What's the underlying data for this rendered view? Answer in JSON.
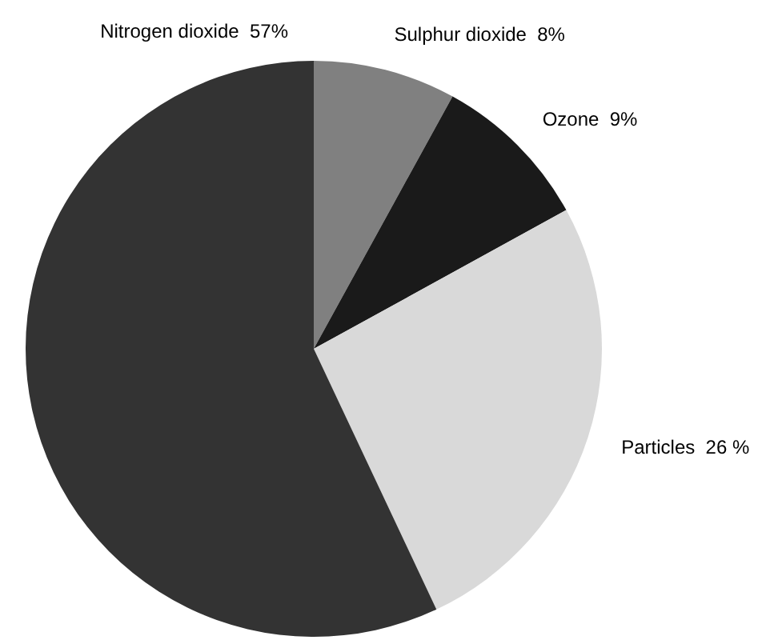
{
  "chart_data": {
    "type": "pie",
    "categories": [
      "Sulphur dioxide",
      "Ozone",
      "Particles",
      "Nitrogen dioxide"
    ],
    "values": [
      8,
      9,
      26,
      57
    ],
    "colors": [
      "#808080",
      "#1a1a1a",
      "#d9d9d9",
      "#333333"
    ],
    "value_labels": [
      "8%",
      "9%",
      "26 %",
      "57%"
    ],
    "legend": false
  }
}
